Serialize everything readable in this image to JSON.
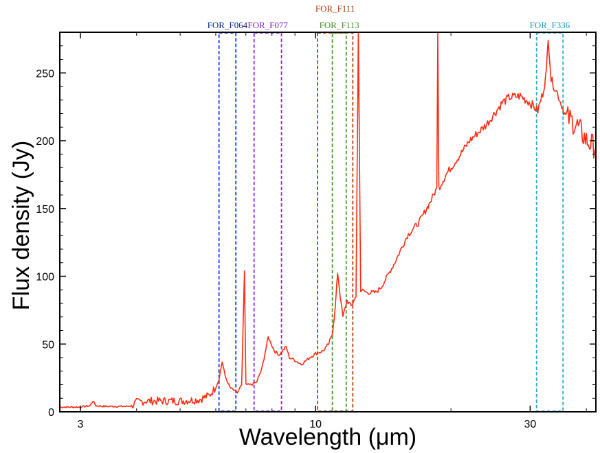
{
  "chart_data": {
    "type": "line",
    "title": "",
    "xlabel": "Wavelength (μm)",
    "ylabel": "Flux density (Jy)",
    "xscale": "log",
    "xlim": [
      2.7,
      42
    ],
    "ylim": [
      0,
      280
    ],
    "x_ticks": [
      {
        "value": 3,
        "label": "3"
      },
      {
        "value": 10,
        "label": "10"
      },
      {
        "value": 30,
        "label": "30"
      }
    ],
    "y_ticks": [
      {
        "value": 0,
        "label": "0"
      },
      {
        "value": 50,
        "label": "50"
      },
      {
        "value": 100,
        "label": "100"
      },
      {
        "value": 150,
        "label": "150"
      },
      {
        "value": 200,
        "label": "200"
      },
      {
        "value": 250,
        "label": "250"
      }
    ],
    "grid": false,
    "series": [
      {
        "name": "spectrum",
        "color": "#ff2a10",
        "points": [
          [
            2.7,
            3.5
          ],
          [
            3.0,
            3.5
          ],
          [
            3.15,
            4.5
          ],
          [
            3.2,
            8
          ],
          [
            3.25,
            4.5
          ],
          [
            3.4,
            4
          ],
          [
            3.8,
            4
          ],
          [
            3.9,
            4.5
          ],
          [
            4.0,
            7
          ],
          [
            4.2,
            8
          ],
          [
            4.5,
            8
          ],
          [
            5.0,
            8
          ],
          [
            5.5,
            9
          ],
          [
            5.8,
            12
          ],
          [
            6.0,
            18
          ],
          [
            6.1,
            24
          ],
          [
            6.2,
            37
          ],
          [
            6.3,
            26
          ],
          [
            6.45,
            18
          ],
          [
            6.7,
            14
          ],
          [
            6.85,
            20
          ],
          [
            6.95,
            104
          ],
          [
            7.0,
            20
          ],
          [
            7.2,
            20
          ],
          [
            7.4,
            22
          ],
          [
            7.6,
            32
          ],
          [
            7.85,
            55
          ],
          [
            8.1,
            45
          ],
          [
            8.3,
            42
          ],
          [
            8.6,
            48
          ],
          [
            8.75,
            40
          ],
          [
            9.0,
            38
          ],
          [
            9.3,
            35
          ],
          [
            9.7,
            40
          ],
          [
            10.0,
            43
          ],
          [
            10.4,
            45
          ],
          [
            10.7,
            50
          ],
          [
            10.9,
            58
          ],
          [
            11.05,
            75
          ],
          [
            11.2,
            103
          ],
          [
            11.35,
            85
          ],
          [
            11.5,
            70
          ],
          [
            11.75,
            82
          ],
          [
            12.0,
            78
          ],
          [
            12.3,
            85
          ],
          [
            12.45,
            280
          ],
          [
            12.6,
            90
          ],
          [
            13.0,
            88
          ],
          [
            13.6,
            88
          ],
          [
            14.0,
            92
          ],
          [
            15.0,
            110
          ],
          [
            16.0,
            130
          ],
          [
            17.0,
            140
          ],
          [
            18.0,
            155
          ],
          [
            18.6,
            165
          ],
          [
            18.7,
            280
          ],
          [
            18.8,
            165
          ],
          [
            19.5,
            175
          ],
          [
            21.0,
            190
          ],
          [
            22.0,
            200
          ],
          [
            24.0,
            212
          ],
          [
            26.0,
            228
          ],
          [
            27.0,
            232
          ],
          [
            28.5,
            233
          ],
          [
            30.0,
            228
          ],
          [
            31.2,
            222
          ],
          [
            32.0,
            235
          ],
          [
            32.6,
            250
          ],
          [
            32.9,
            278
          ],
          [
            33.4,
            245
          ],
          [
            34.5,
            235
          ],
          [
            36.0,
            218
          ],
          [
            38.0,
            212
          ],
          [
            40.0,
            200
          ],
          [
            42.0,
            195
          ]
        ]
      }
    ],
    "filters": [
      {
        "name": "FOR_F064",
        "x_min": 6.1,
        "x_max": 6.65,
        "color": "#1a3eda",
        "label_color": "#0c2a8a",
        "label_row": 2
      },
      {
        "name": "FOR_F077",
        "x_min": 7.3,
        "x_max": 8.4,
        "color": "#8a2ae0",
        "label_color": "#7a22cc",
        "label_row": 2
      },
      {
        "name": "FOR_F111",
        "x_min": 10.1,
        "x_max": 12.1,
        "color": "#b84010",
        "label_color": "#b04010",
        "label_row": 1
      },
      {
        "name": "FOR_F113",
        "x_min": 10.9,
        "x_max": 11.7,
        "color": "#4a9a2a",
        "label_color": "#4a8a2a",
        "label_row": 2
      },
      {
        "name": "FOR_F336",
        "x_min": 31.0,
        "x_max": 35.5,
        "color": "#2aa8d0",
        "label_color": "#1a98c0",
        "label_row": 2
      }
    ]
  }
}
